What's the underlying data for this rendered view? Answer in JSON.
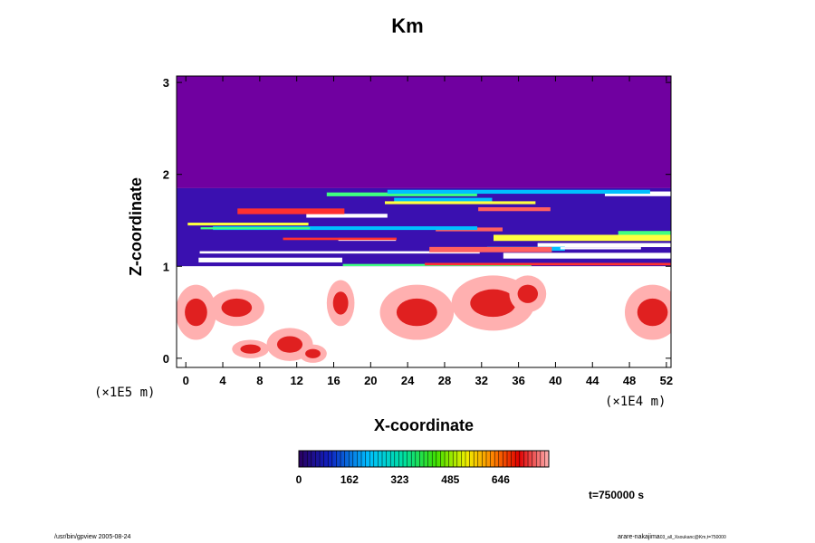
{
  "chart_data": {
    "type": "heatmap",
    "title": "Km",
    "xlabel": "X-coordinate",
    "ylabel": "Z-coordinate",
    "x_scale_note": "(×1E4 m)",
    "y_scale_note": "(×1E5 m)",
    "xlim": [
      -1,
      52.5
    ],
    "ylim": [
      -0.1,
      3.07
    ],
    "x_ticks": [
      0,
      4,
      8,
      12,
      16,
      20,
      24,
      28,
      32,
      36,
      40,
      44,
      48,
      52
    ],
    "y_ticks": [
      0,
      1,
      2,
      3
    ],
    "colorbar": {
      "min": 0,
      "max": 800,
      "tick_values": [
        0,
        162,
        323,
        485,
        646
      ],
      "tick_labels": [
        "0",
        "162",
        "323",
        "485",
        "646"
      ]
    },
    "regions": [
      {
        "z_from": 1.85,
        "z_to": 3.07,
        "description": "uniform low value (purple)",
        "value": 0
      },
      {
        "z_from": 1.0,
        "z_to": 1.85,
        "description": "layered mixed values",
        "value": "mixed"
      },
      {
        "z_from": -0.1,
        "z_to": 1.0,
        "description": "mostly high/white with red patches",
        "value": "high"
      }
    ]
  },
  "annotations": {
    "time": "t=750000 s"
  },
  "footer": {
    "left": "/usr/bin/gpview 2005-08-24",
    "right": "arare-nakajima",
    "right_small": "03_all_Xsoukanc@Km,t=750000"
  },
  "colors": {
    "background": "#ffffff",
    "low": "#7000a0",
    "axis": "#000000"
  }
}
